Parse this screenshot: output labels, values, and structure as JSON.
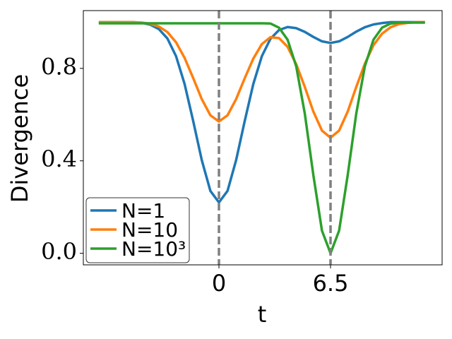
{
  "chart_data": {
    "type": "line",
    "x_label": "t",
    "y_label": "Divergence",
    "x": [
      -7,
      -6.5,
      -6,
      -5.5,
      -5,
      -4.5,
      -4,
      -3.5,
      -3,
      -2.5,
      -2,
      -1.5,
      -1,
      -0.5,
      0,
      0.5,
      1,
      1.5,
      2,
      2.5,
      3,
      3.5,
      4,
      4.5,
      5,
      5.5,
      6,
      6.5,
      7,
      7.5,
      8,
      8.5,
      9,
      9.5,
      10,
      10.5,
      11,
      11.5,
      12
    ],
    "series": [
      {
        "name": "N=1",
        "color": "#1f77b4",
        "values": [
          1,
          1,
          1,
          1,
          1,
          0.997,
          0.989,
          0.97,
          0.929,
          0.853,
          0.732,
          0.572,
          0.403,
          0.27,
          0.22,
          0.27,
          0.403,
          0.572,
          0.732,
          0.853,
          0.928,
          0.966,
          0.979,
          0.974,
          0.958,
          0.936,
          0.917,
          0.91,
          0.917,
          0.936,
          0.959,
          0.978,
          0.99,
          0.996,
          1,
          1,
          1,
          1,
          1
        ]
      },
      {
        "name": "N=10",
        "color": "#ff7f0e",
        "values": [
          1,
          1,
          1,
          1,
          1,
          0.998,
          0.993,
          0.981,
          0.957,
          0.913,
          0.845,
          0.758,
          0.667,
          0.597,
          0.57,
          0.597,
          0.667,
          0.757,
          0.842,
          0.905,
          0.935,
          0.931,
          0.893,
          0.818,
          0.72,
          0.613,
          0.531,
          0.5,
          0.531,
          0.613,
          0.72,
          0.82,
          0.9,
          0.95,
          0.978,
          0.992,
          0.997,
          1,
          1
        ]
      },
      {
        "name": "N=10³",
        "color": "#2ca02c",
        "values": [
          0.995,
          0.995,
          0.995,
          0.995,
          0.995,
          0.995,
          0.995,
          0.995,
          0.995,
          0.995,
          0.995,
          0.995,
          0.995,
          0.995,
          0.995,
          0.995,
          0.995,
          0.995,
          0.995,
          0.995,
          0.994,
          0.976,
          0.924,
          0.809,
          0.605,
          0.338,
          0.098,
          0,
          0.098,
          0.338,
          0.605,
          0.809,
          0.924,
          0.976,
          0.994,
          0.998,
          0.998,
          0.998,
          0.998
        ]
      }
    ],
    "xlim": [
      -7.9,
      13.0
    ],
    "ylim": [
      -0.05,
      1.05
    ],
    "xticks": [
      0,
      6.5
    ],
    "yticks": [
      {
        "value": 0,
        "label": "0.0"
      },
      0.4,
      0.8
    ],
    "vlines": [
      0,
      6.5
    ],
    "vline_color": "#808080",
    "legend": "lower left",
    "grid": false
  }
}
